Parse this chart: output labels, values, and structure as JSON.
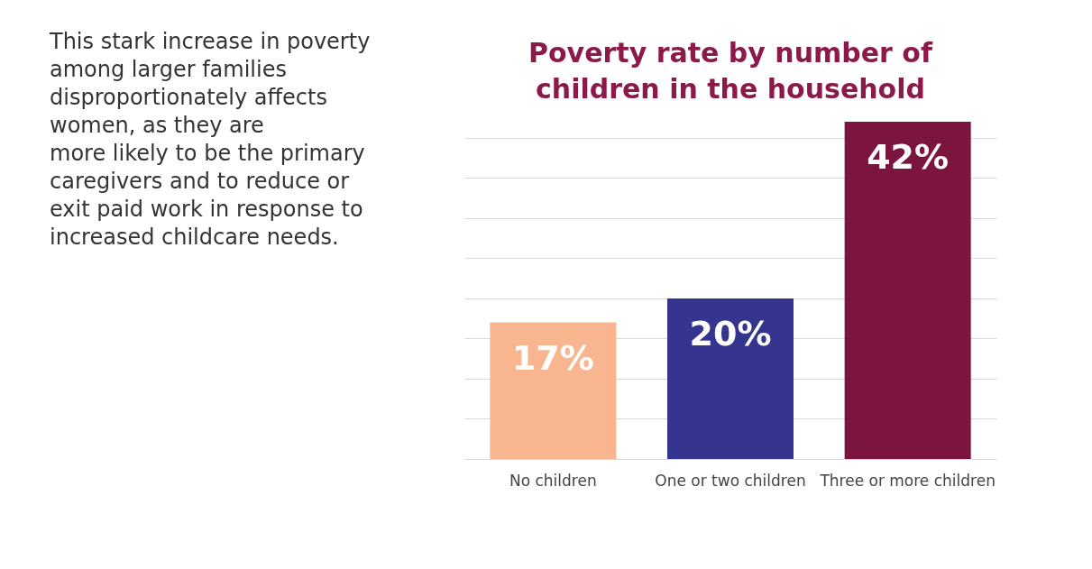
{
  "chart_data": {
    "type": "bar",
    "title": "Poverty rate by number of\nchildren in the household",
    "categories": [
      "No children",
      "One or two children",
      "Three or more children"
    ],
    "values": [
      17,
      20,
      42
    ],
    "colors": [
      "#f8b590",
      "#353590",
      "#7c1440"
    ],
    "data_labels": true,
    "value_labels": [
      "17%",
      "20%",
      "42%"
    ],
    "ylim": [
      0,
      42
    ],
    "yticks": [
      {
        "value": 0,
        "label": null
      },
      {
        "value": 5,
        "label": null
      },
      {
        "value": 10,
        "label": null
      },
      {
        "value": 15,
        "label": null
      },
      {
        "value": 20,
        "label": null
      },
      {
        "value": 25,
        "label": null
      },
      {
        "value": 30,
        "label": null
      },
      {
        "value": 35,
        "label": null
      },
      {
        "value": 40,
        "label": null
      }
    ],
    "grid": "y",
    "tick_labels": "x",
    "annotations": [
      "This stark increase in poverty\namong larger families\ndisproportionately affects\nwomen, as they are\nmore likely to be the primary\ncaregivers and to reduce or\nexit paid work in response to\nincreased childcare needs."
    ]
  }
}
